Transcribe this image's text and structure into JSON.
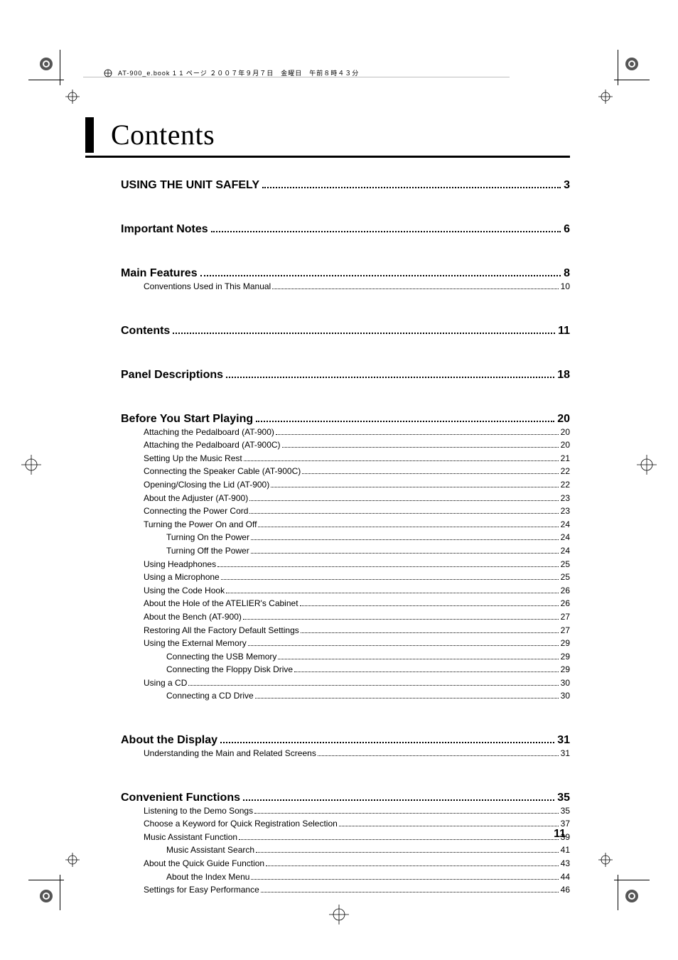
{
  "header": {
    "text": "AT-900_e.book  1 1 ページ  ２００７年９月７日　金曜日　午前８時４３分"
  },
  "title": "Contents",
  "page_number": "11",
  "sections": [
    {
      "title": "USING THE UNIT SAFELY",
      "page": "3",
      "items": []
    },
    {
      "title": "Important Notes",
      "page": "6",
      "items": []
    },
    {
      "title": "Main Features",
      "page": "8",
      "items": [
        {
          "level": 1,
          "title": "Conventions Used in This Manual",
          "page": "10"
        }
      ]
    },
    {
      "title": "Contents",
      "page": "11",
      "items": []
    },
    {
      "title": "Panel Descriptions",
      "page": "18",
      "items": []
    },
    {
      "title": "Before You Start Playing",
      "page": "20",
      "items": [
        {
          "level": 1,
          "title": "Attaching the Pedalboard (AT-900)",
          "page": "20"
        },
        {
          "level": 1,
          "title": "Attaching the Pedalboard (AT-900C)",
          "page": "20"
        },
        {
          "level": 1,
          "title": "Setting Up the Music Rest",
          "page": "21"
        },
        {
          "level": 1,
          "title": "Connecting the Speaker Cable (AT-900C)",
          "page": "22"
        },
        {
          "level": 1,
          "title": "Opening/Closing the Lid (AT-900)",
          "page": "22"
        },
        {
          "level": 1,
          "title": "About the Adjuster (AT-900)",
          "page": "23"
        },
        {
          "level": 1,
          "title": "Connecting the Power Cord",
          "page": "23"
        },
        {
          "level": 1,
          "title": "Turning the Power On and Off",
          "page": "24"
        },
        {
          "level": 2,
          "title": "Turning On the Power",
          "page": "24"
        },
        {
          "level": 2,
          "title": "Turning Off the Power",
          "page": "24"
        },
        {
          "level": 1,
          "title": "Using Headphones",
          "page": "25"
        },
        {
          "level": 1,
          "title": "Using a Microphone",
          "page": "25"
        },
        {
          "level": 1,
          "title": "Using the Code Hook",
          "page": "26"
        },
        {
          "level": 1,
          "title": "About the Hole of the ATELIER's Cabinet",
          "page": "26"
        },
        {
          "level": 1,
          "title": "About the Bench (AT-900)",
          "page": "27"
        },
        {
          "level": 1,
          "title": "Restoring All the Factory Default Settings",
          "page": "27"
        },
        {
          "level": 1,
          "title": "Using the External Memory",
          "page": "29"
        },
        {
          "level": 2,
          "title": "Connecting the USB Memory",
          "page": "29"
        },
        {
          "level": 2,
          "title": "Connecting the Floppy Disk Drive",
          "page": "29"
        },
        {
          "level": 1,
          "title": "Using a CD",
          "page": "30"
        },
        {
          "level": 2,
          "title": "Connecting a CD Drive",
          "page": "30"
        }
      ]
    },
    {
      "title": "About the Display",
      "page": "31",
      "items": [
        {
          "level": 1,
          "title": "Understanding the Main and Related Screens",
          "page": "31"
        }
      ]
    },
    {
      "title": "Convenient Functions",
      "page": "35",
      "items": [
        {
          "level": 1,
          "title": "Listening to the Demo Songs",
          "page": "35"
        },
        {
          "level": 1,
          "title": "Choose a Keyword for Quick Registration Selection",
          "page": "37"
        },
        {
          "level": 1,
          "title": "Music Assistant Function",
          "page": "39"
        },
        {
          "level": 2,
          "title": "Music Assistant Search",
          "page": "41"
        },
        {
          "level": 1,
          "title": "About the Quick Guide Function",
          "page": "43"
        },
        {
          "level": 2,
          "title": "About the Index Menu",
          "page": "44"
        },
        {
          "level": 1,
          "title": "Settings for Easy Performance",
          "page": "46"
        }
      ]
    }
  ],
  "colors": {
    "page_bg": "#ffffff",
    "text": "#000000",
    "dots": "#000000",
    "bar": "#000000"
  }
}
